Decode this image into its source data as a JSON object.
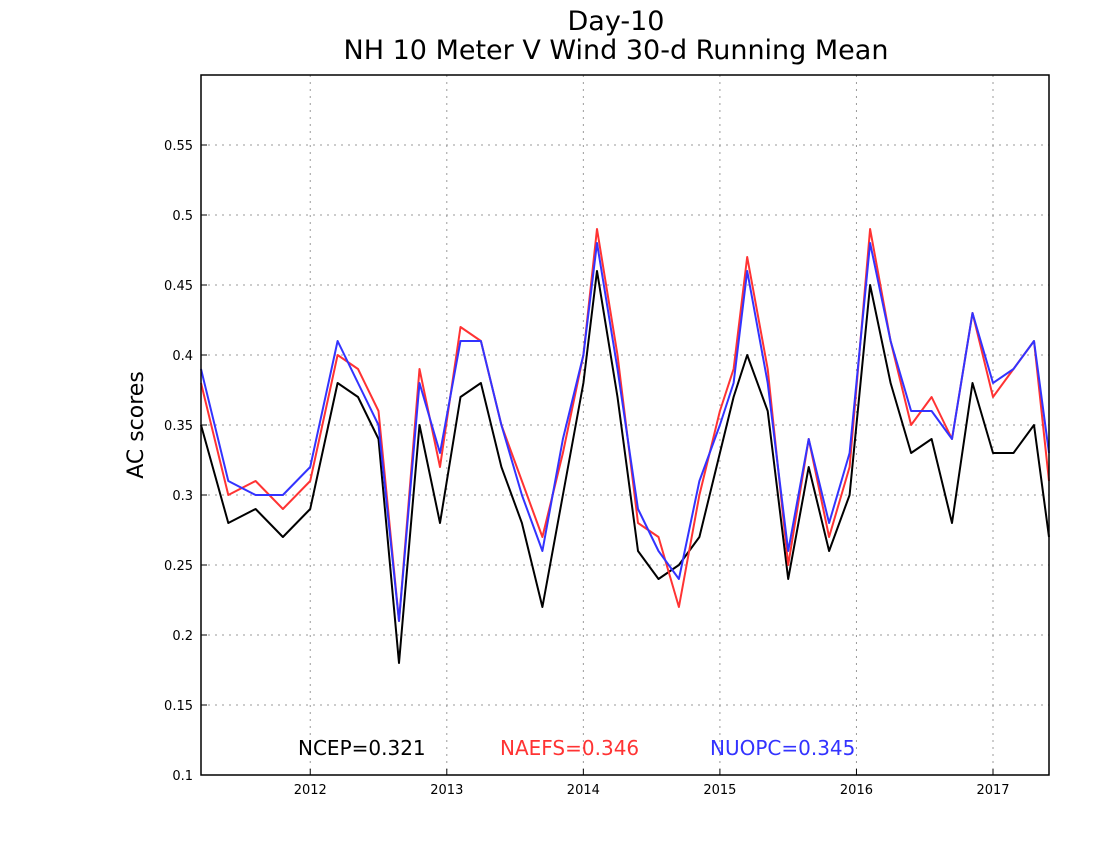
{
  "chart_data": {
    "type": "line",
    "title": "Day-10",
    "subtitle": "NH 10 Meter V Wind 30-d Running Mean",
    "ylabel": "AC scores",
    "xlabel": "",
    "xlim": [
      2011.2,
      2017.41
    ],
    "ylim": [
      0.1,
      0.6
    ],
    "grid": true,
    "x_ticks": [
      2012,
      2013,
      2014,
      2015,
      2016,
      2017
    ],
    "y_ticks": [
      "0.1",
      "0.15",
      "0.2",
      "0.25",
      "0.3",
      "0.35",
      "0.4",
      "0.45",
      "0.5",
      "0.55"
    ],
    "series_points_x": [
      2011.2,
      2011.4,
      2011.6,
      2011.8,
      2012.0,
      2012.2,
      2012.35,
      2012.5,
      2012.65,
      2012.8,
      2012.95,
      2013.1,
      2013.25,
      2013.4,
      2013.55,
      2013.7,
      2013.85,
      2014.0,
      2014.1,
      2014.25,
      2014.4,
      2014.55,
      2014.7,
      2014.85,
      2015.0,
      2015.1,
      2015.2,
      2015.35,
      2015.5,
      2015.65,
      2015.8,
      2015.95,
      2016.1,
      2016.25,
      2016.4,
      2016.55,
      2016.7,
      2016.85,
      2017.0,
      2017.15,
      2017.3,
      2017.41
    ],
    "series": [
      {
        "name": "NCEP",
        "color": "#000000",
        "values": [
          0.35,
          0.28,
          0.29,
          0.27,
          0.29,
          0.38,
          0.37,
          0.34,
          0.18,
          0.35,
          0.28,
          0.37,
          0.38,
          0.32,
          0.28,
          0.22,
          0.3,
          0.38,
          0.46,
          0.37,
          0.26,
          0.24,
          0.25,
          0.27,
          0.33,
          0.37,
          0.4,
          0.36,
          0.24,
          0.32,
          0.26,
          0.3,
          0.45,
          0.38,
          0.33,
          0.34,
          0.28,
          0.38,
          0.33,
          0.33,
          0.35,
          0.27
        ],
        "score_label": "NCEP=0.321"
      },
      {
        "name": "NAEFS",
        "color": "#ff3333",
        "values": [
          0.38,
          0.3,
          0.31,
          0.29,
          0.31,
          0.4,
          0.39,
          0.36,
          0.21,
          0.39,
          0.32,
          0.42,
          0.41,
          0.35,
          0.31,
          0.27,
          0.33,
          0.4,
          0.49,
          0.4,
          0.28,
          0.27,
          0.22,
          0.3,
          0.36,
          0.39,
          0.47,
          0.39,
          0.25,
          0.34,
          0.27,
          0.32,
          0.49,
          0.41,
          0.35,
          0.37,
          0.34,
          0.43,
          0.37,
          0.39,
          0.41,
          0.31
        ],
        "score_label": "NAEFS=0.346"
      },
      {
        "name": "NUOPC",
        "color": "#3333ff",
        "values": [
          0.39,
          0.31,
          0.3,
          0.3,
          0.32,
          0.41,
          0.38,
          0.35,
          0.21,
          0.38,
          0.33,
          0.41,
          0.41,
          0.35,
          0.3,
          0.26,
          0.34,
          0.4,
          0.48,
          0.39,
          0.29,
          0.26,
          0.24,
          0.31,
          0.35,
          0.38,
          0.46,
          0.38,
          0.26,
          0.34,
          0.28,
          0.33,
          0.48,
          0.41,
          0.36,
          0.36,
          0.34,
          0.43,
          0.38,
          0.39,
          0.41,
          0.33
        ],
        "score_label": "NUOPC=0.345"
      }
    ]
  }
}
